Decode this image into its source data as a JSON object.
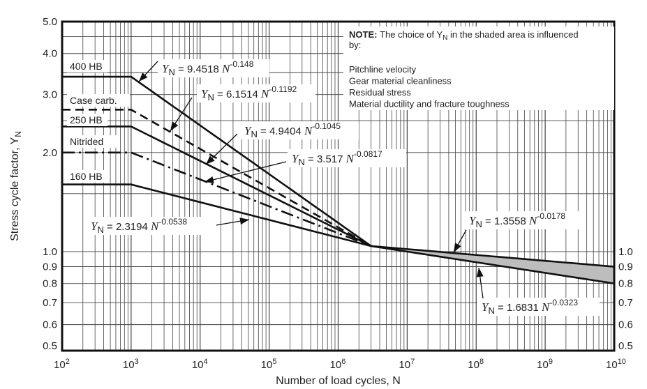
{
  "chart_data": {
    "type": "line",
    "title": "",
    "xlabel": "Number of load cycles, N",
    "ylabel": "Stress cycle factor, Y",
    "ylabel_sub": "N",
    "x_scale": "log",
    "y_scale": "log",
    "xlim": [
      100,
      10000000000
    ],
    "ylim": [
      0.5,
      5.0
    ],
    "grid": true,
    "x_ticks": [
      {
        "base": "10",
        "exp": "2"
      },
      {
        "base": "10",
        "exp": "3"
      },
      {
        "base": "10",
        "exp": "4"
      },
      {
        "base": "10",
        "exp": "5"
      },
      {
        "base": "10",
        "exp": "6"
      },
      {
        "base": "10",
        "exp": "7"
      },
      {
        "base": "10",
        "exp": "8"
      },
      {
        "base": "10",
        "exp": "9"
      },
      {
        "base": "10",
        "exp": "10"
      }
    ],
    "y_ticks_left": [
      "5.0",
      "4.0",
      "3.0",
      "2.0",
      "1.0",
      "0.9",
      "0.8",
      "0.7",
      "0.6",
      "0.5"
    ],
    "y_ticks_right": [
      "1.0",
      "0.9",
      "0.8",
      "0.7",
      "0.6",
      "0.5"
    ],
    "series": [
      {
        "name": "400 HB",
        "coef": 9.4518,
        "exp": -0.148,
        "exp_label": "-0.148",
        "coef_label": "9.4518",
        "style": "solid",
        "flat_value": 3.4
      },
      {
        "name": "Case carb.",
        "coef": 6.1514,
        "exp": -0.1192,
        "exp_label": "-0.1192",
        "coef_label": "6.1514",
        "style": "dashed",
        "flat_value": 2.7
      },
      {
        "name": "250 HB",
        "coef": 4.9404,
        "exp": -0.1045,
        "exp_label": "-0.1045",
        "coef_label": "4.9404",
        "style": "solid",
        "flat_value": 2.4
      },
      {
        "name": "Nitrided",
        "coef": 3.517,
        "exp": -0.0817,
        "exp_label": "-0.0817",
        "coef_label": "3.517",
        "style": "dashdot",
        "flat_value": 2.0
      },
      {
        "name": "160 HB",
        "coef": 2.3194,
        "exp": -0.0538,
        "exp_label": "-0.0538",
        "coef_label": "2.3194",
        "style": "solid",
        "flat_value": 1.6
      }
    ],
    "long_life": [
      {
        "coef": 1.3558,
        "exp": -0.0178,
        "coef_label": "1.3558",
        "exp_label": "-0.0178"
      },
      {
        "coef": 1.6831,
        "exp": -0.0323,
        "coef_label": "1.6831",
        "exp_label": "-0.0323"
      }
    ],
    "knee_cycles": [
      1000,
      3000000
    ],
    "shaded_color": "#bdbdbd",
    "note": {
      "heading": "NOTE:",
      "text1": "The choice of Y",
      "text1_sub": "N",
      "text2": " in the shaded area is influenced",
      "text3": "by:",
      "items": [
        "Pitchline velocity",
        "Gear material cleanliness",
        "Residual stress",
        "Material ductility and fracture toughness"
      ]
    },
    "eq_prefix": "Y",
    "eq_sub": "N",
    "eq_mid": " = ",
    "eq_var": "N"
  }
}
